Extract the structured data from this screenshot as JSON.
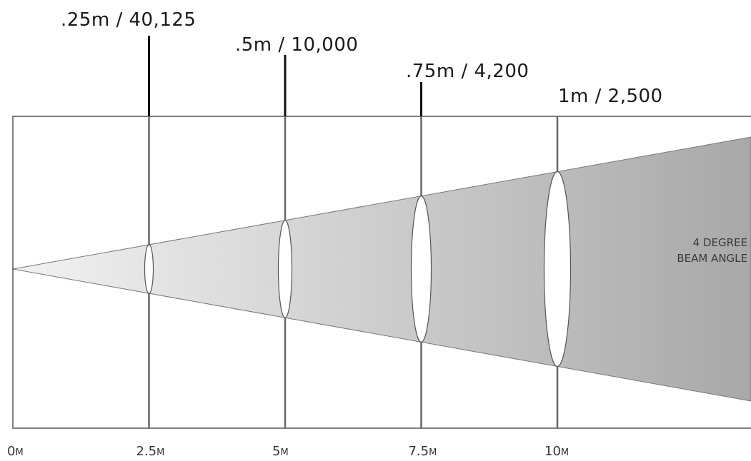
{
  "beam": {
    "angle_label_line1": "4 DEGREE",
    "angle_label_line2": "BEAM ANGLE"
  },
  "markers": [
    {
      "distance_m": 2.5,
      "distance_label": "2.5",
      "unit": "M",
      "spot_label": ".25m / 40,125",
      "spot_diameter_m": 0.25,
      "intensity": 40125
    },
    {
      "distance_m": 5,
      "distance_label": "5",
      "unit": "M",
      "spot_label": ".5m / 10,000",
      "spot_diameter_m": 0.5,
      "intensity": 10000
    },
    {
      "distance_m": 7.5,
      "distance_label": "7.5",
      "unit": "M",
      "spot_label": ".75m / 4,200",
      "spot_diameter_m": 0.75,
      "intensity": 4200
    },
    {
      "distance_m": 10,
      "distance_label": "10",
      "unit": "M",
      "spot_label": "1m / 2,500",
      "spot_diameter_m": 1.0,
      "intensity": 2500
    }
  ],
  "axis": {
    "origin_label": "0",
    "origin_unit": "M"
  },
  "colors": {
    "frame": "#555555",
    "beam_light": "#f2f2f2",
    "beam_dark": "#a8a8a8",
    "marker_line": "#666666",
    "label_tick": "#111111",
    "spot": "#ffffff"
  }
}
